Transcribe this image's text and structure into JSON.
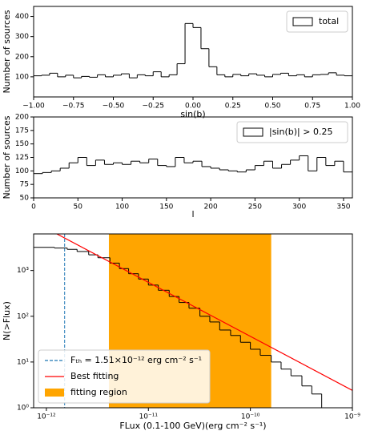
{
  "chart_data": [
    {
      "type": "hist",
      "xlabel": "sin(b)",
      "ylabel": "Number of sources",
      "legend": "upper right",
      "series": [
        {
          "name": "total",
          "color": "#000000",
          "bins": [
            -1,
            -0.95,
            -0.9,
            -0.85,
            -0.8,
            -0.75,
            -0.7,
            -0.65,
            -0.6,
            -0.55,
            -0.5,
            -0.45,
            -0.4,
            -0.35,
            -0.3,
            -0.25,
            -0.2,
            -0.15,
            -0.1,
            -0.05,
            0,
            0.05,
            0.1,
            0.15,
            0.2,
            0.25,
            0.3,
            0.35,
            0.4,
            0.45,
            0.5,
            0.55,
            0.6,
            0.65,
            0.7,
            0.75,
            0.8,
            0.85,
            0.9,
            0.95,
            1
          ],
          "values": [
            105,
            108,
            118,
            100,
            108,
            95,
            102,
            98,
            110,
            100,
            108,
            115,
            95,
            110,
            105,
            125,
            100,
            110,
            165,
            365,
            345,
            240,
            150,
            110,
            100,
            112,
            105,
            115,
            108,
            100,
            112,
            118,
            105,
            110,
            100,
            110,
            112,
            120,
            108,
            105
          ]
        }
      ],
      "xlim": [
        -1,
        1
      ],
      "xticks": [
        {
          "value": -1,
          "label": "−1.00"
        },
        {
          "value": -0.75,
          "label": "−0.75"
        },
        {
          "value": -0.5,
          "label": "−0.50"
        },
        {
          "value": -0.25,
          "label": "−0.25"
        },
        {
          "value": 0,
          "label": "0.00"
        },
        {
          "value": 0.25,
          "label": "0.25"
        },
        {
          "value": 0.5,
          "label": "0.50"
        },
        {
          "value": 0.75,
          "label": "0.75"
        },
        {
          "value": 1,
          "label": "1.00"
        }
      ],
      "ylim": [
        0,
        450
      ],
      "yticks": [
        100,
        200,
        300,
        400
      ]
    },
    {
      "type": "hist",
      "xlabel": "l",
      "ylabel": "Number of sources",
      "legend": "upper right",
      "series": [
        {
          "name": "|sin(b)| > 0.25",
          "color": "#000000",
          "bins": [
            0,
            10,
            20,
            30,
            40,
            50,
            60,
            70,
            80,
            90,
            100,
            110,
            120,
            130,
            140,
            150,
            160,
            170,
            180,
            190,
            200,
            210,
            220,
            230,
            240,
            250,
            260,
            270,
            280,
            290,
            300,
            310,
            320,
            330,
            340,
            350,
            360
          ],
          "values": [
            95,
            97,
            100,
            105,
            115,
            125,
            110,
            120,
            112,
            115,
            112,
            118,
            115,
            122,
            110,
            108,
            125,
            115,
            118,
            108,
            105,
            102,
            100,
            98,
            102,
            110,
            118,
            105,
            112,
            120,
            128,
            100,
            125,
            110,
            118,
            98
          ]
        }
      ],
      "xlim": [
        0,
        360
      ],
      "xticks": [
        0,
        50,
        100,
        150,
        200,
        250,
        300,
        350
      ],
      "ylim": [
        50,
        200
      ],
      "yticks": [
        50,
        75,
        100,
        125,
        150,
        175,
        200
      ]
    },
    {
      "type": "step",
      "xscale": "log",
      "yscale": "log",
      "xlabel": "FLux (0.1-100 GeV)(erg cm⁻² s⁻¹)",
      "ylabel": "N(>Flux)",
      "legend": "lower left",
      "curve": {
        "color": "#000000",
        "x": [
          7.5e-13,
          1.2e-12,
          1.6e-12,
          2e-12,
          2.6e-12,
          3.2e-12,
          4.2e-12,
          5.2e-12,
          6.4e-12,
          8e-12,
          1e-11,
          1.25e-11,
          1.6e-11,
          2e-11,
          2.5e-11,
          3.2e-11,
          4e-11,
          5e-11,
          6.4e-11,
          8e-11,
          1e-10,
          1.25e-10,
          1.6e-10,
          2e-10,
          2.5e-10,
          3.2e-10,
          4e-10,
          5e-10
        ],
        "values": [
          3200,
          3100,
          2900,
          2600,
          2200,
          1900,
          1450,
          1100,
          850,
          650,
          480,
          370,
          270,
          200,
          150,
          100,
          75,
          50,
          38,
          27,
          19,
          14,
          10,
          7,
          5,
          3,
          2,
          1
        ]
      },
      "threshold": {
        "name": "Fₜₕ = 1.51×10⁻¹² erg cm⁻² s⁻¹",
        "value": 1.51e-12,
        "color": "#1f77b4"
      },
      "fit": {
        "name": "Best fitting",
        "color": "#ff0000",
        "x": [
          1.16e-12,
          1e-09
        ],
        "values": [
          7000,
          2.4
        ]
      },
      "region": {
        "name": "fitting region",
        "color": "#ffa500",
        "xlim": [
          4.1e-12,
          1.6e-10
        ]
      },
      "xlim": [
        7.5e-13,
        1e-09
      ],
      "xticks": [
        {
          "value": 1e-12,
          "label": "10⁻¹²"
        },
        {
          "value": 1e-11,
          "label": "10⁻¹¹"
        },
        {
          "value": 1e-10,
          "label": "10⁻¹⁰"
        },
        {
          "value": 1e-09,
          "label": "10⁻⁹"
        }
      ],
      "ylim": [
        1,
        6300
      ],
      "yticks": [
        {
          "value": 1,
          "label": "10⁰"
        },
        {
          "value": 10,
          "label": "10¹"
        },
        {
          "value": 100,
          "label": "10²"
        },
        {
          "value": 1000,
          "label": "10³"
        }
      ]
    }
  ]
}
